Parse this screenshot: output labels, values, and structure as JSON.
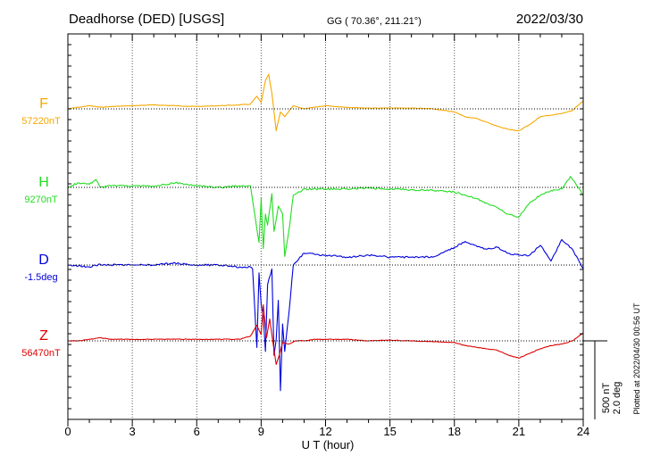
{
  "header": {
    "station": "Deadhorse (DED)  [USGS]",
    "coords": "GG ( 70.36°, 211.21°)",
    "date": "2022/03/30"
  },
  "side_note": "Plotted at 2022/04/30 00:56 UT",
  "scale": {
    "nt": "500 nT",
    "deg": "2.0 deg"
  },
  "chart_data": {
    "type": "line",
    "title": "Deadhorse (DED)  [USGS]",
    "xlabel": "U T (hour)",
    "ylabel": "",
    "xlim": [
      0,
      24
    ],
    "x_ticks": [
      0,
      3,
      6,
      9,
      12,
      15,
      18,
      21,
      24
    ],
    "x_tick_labels": [
      "0",
      "3",
      "6",
      "9",
      "12",
      "15",
      "18",
      "21",
      "24"
    ],
    "grid": true,
    "scale_bar": {
      "field_nT": 500,
      "declination_deg": 2.0
    },
    "series": [
      {
        "name": "F",
        "baseline_label": "57220nT",
        "baseline": 57220,
        "unit": "nT",
        "color": "#f5a800",
        "x": [
          0,
          0.5,
          1,
          1.5,
          2,
          3,
          4,
          5,
          6,
          7,
          8,
          8.5,
          8.8,
          9.0,
          9.2,
          9.35,
          9.5,
          9.7,
          9.9,
          10.1,
          10.5,
          11,
          12,
          13,
          14,
          15,
          16,
          17,
          18,
          18.5,
          19,
          20,
          20.5,
          21,
          21.5,
          22,
          22.5,
          23,
          23.5,
          24
        ],
        "y": [
          57220,
          57230,
          57240,
          57230,
          57235,
          57240,
          57245,
          57240,
          57235,
          57240,
          57245,
          57250,
          57300,
          57260,
          57400,
          57440,
          57320,
          57080,
          57200,
          57170,
          57240,
          57220,
          57240,
          57230,
          57225,
          57225,
          57225,
          57220,
          57200,
          57170,
          57160,
          57110,
          57090,
          57080,
          57120,
          57170,
          57180,
          57190,
          57210,
          57270
        ]
      },
      {
        "name": "H",
        "baseline_label": "9270nT",
        "baseline": 9270,
        "unit": "nT",
        "color": "#22dd22",
        "x": [
          0,
          0.5,
          1,
          1.3,
          1.5,
          2,
          3,
          4,
          5,
          6,
          7,
          8,
          8.5,
          8.7,
          8.9,
          9.0,
          9.1,
          9.2,
          9.3,
          9.5,
          9.6,
          9.8,
          10.0,
          10.1,
          10.3,
          10.5,
          11,
          12,
          13,
          14,
          15,
          16,
          17,
          18,
          18.5,
          19,
          19.5,
          20,
          20.5,
          21,
          21.5,
          22,
          22.5,
          23,
          23.4,
          23.7,
          24
        ],
        "y": [
          9270,
          9300,
          9290,
          9320,
          9270,
          9280,
          9280,
          9275,
          9300,
          9280,
          9270,
          9280,
          9280,
          9100,
          8920,
          9200,
          8880,
          9100,
          9030,
          9230,
          8990,
          9150,
          9100,
          8830,
          9000,
          9220,
          9260,
          9260,
          9260,
          9265,
          9260,
          9255,
          9250,
          9240,
          9220,
          9200,
          9170,
          9140,
          9100,
          9080,
          9170,
          9220,
          9250,
          9260,
          9340,
          9280,
          9220
        ]
      },
      {
        "name": "D",
        "baseline_label": "-1.5deg",
        "baseline": -1.5,
        "unit": "deg",
        "color": "#0000dd",
        "x": [
          0,
          0.5,
          1,
          1.5,
          2,
          3,
          4,
          5,
          6,
          7,
          8,
          8.5,
          8.6,
          8.8,
          8.9,
          9.0,
          9.1,
          9.2,
          9.3,
          9.5,
          9.6,
          9.7,
          9.8,
          9.9,
          10.0,
          10.1,
          10.3,
          10.5,
          11,
          12,
          13,
          14,
          15,
          16,
          17,
          18,
          18.5,
          19,
          19.5,
          20,
          20.5,
          21,
          21.5,
          22,
          22.5,
          23,
          23.5,
          24
        ],
        "y": [
          -1.5,
          -1.52,
          -1.55,
          -1.48,
          -1.5,
          -1.5,
          -1.5,
          -1.45,
          -1.5,
          -1.5,
          -1.55,
          -1.55,
          -1.6,
          -3.6,
          -1.7,
          -2.5,
          -2.8,
          -3.7,
          -2.0,
          -1.6,
          -3.8,
          -3.4,
          -2.4,
          -4.7,
          -3.0,
          -3.7,
          -2.7,
          -1.5,
          -1.2,
          -1.25,
          -1.3,
          -1.25,
          -1.3,
          -1.3,
          -1.3,
          -1.05,
          -0.9,
          -1.0,
          -1.1,
          -1.05,
          -1.2,
          -1.25,
          -1.25,
          -1.0,
          -1.4,
          -0.85,
          -1.1,
          -1.6
        ]
      },
      {
        "name": "Z",
        "baseline_label": "56470nT",
        "baseline": 56470,
        "unit": "nT",
        "color": "#dd0000",
        "x": [
          0,
          0.5,
          1,
          1.5,
          2,
          3,
          4,
          5,
          6,
          7,
          8,
          8.5,
          8.8,
          9.0,
          9.1,
          9.25,
          9.4,
          9.55,
          9.7,
          9.85,
          10.0,
          10.3,
          10.6,
          11,
          11.5,
          12,
          13,
          14,
          15,
          16,
          17,
          18,
          18.5,
          19,
          20,
          20.5,
          21,
          21.5,
          22,
          22.5,
          23,
          23.5,
          24
        ],
        "y": [
          56470,
          56470,
          56480,
          56490,
          56480,
          56480,
          56480,
          56480,
          56480,
          56480,
          56480,
          56500,
          56570,
          56510,
          56700,
          56490,
          56610,
          56460,
          56320,
          56380,
          56460,
          56450,
          56470,
          56470,
          56480,
          56480,
          56480,
          56470,
          56475,
          56470,
          56465,
          56460,
          56440,
          56430,
          56410,
          56380,
          56360,
          56390,
          56420,
          56440,
          56450,
          56470,
          56520
        ]
      }
    ]
  }
}
